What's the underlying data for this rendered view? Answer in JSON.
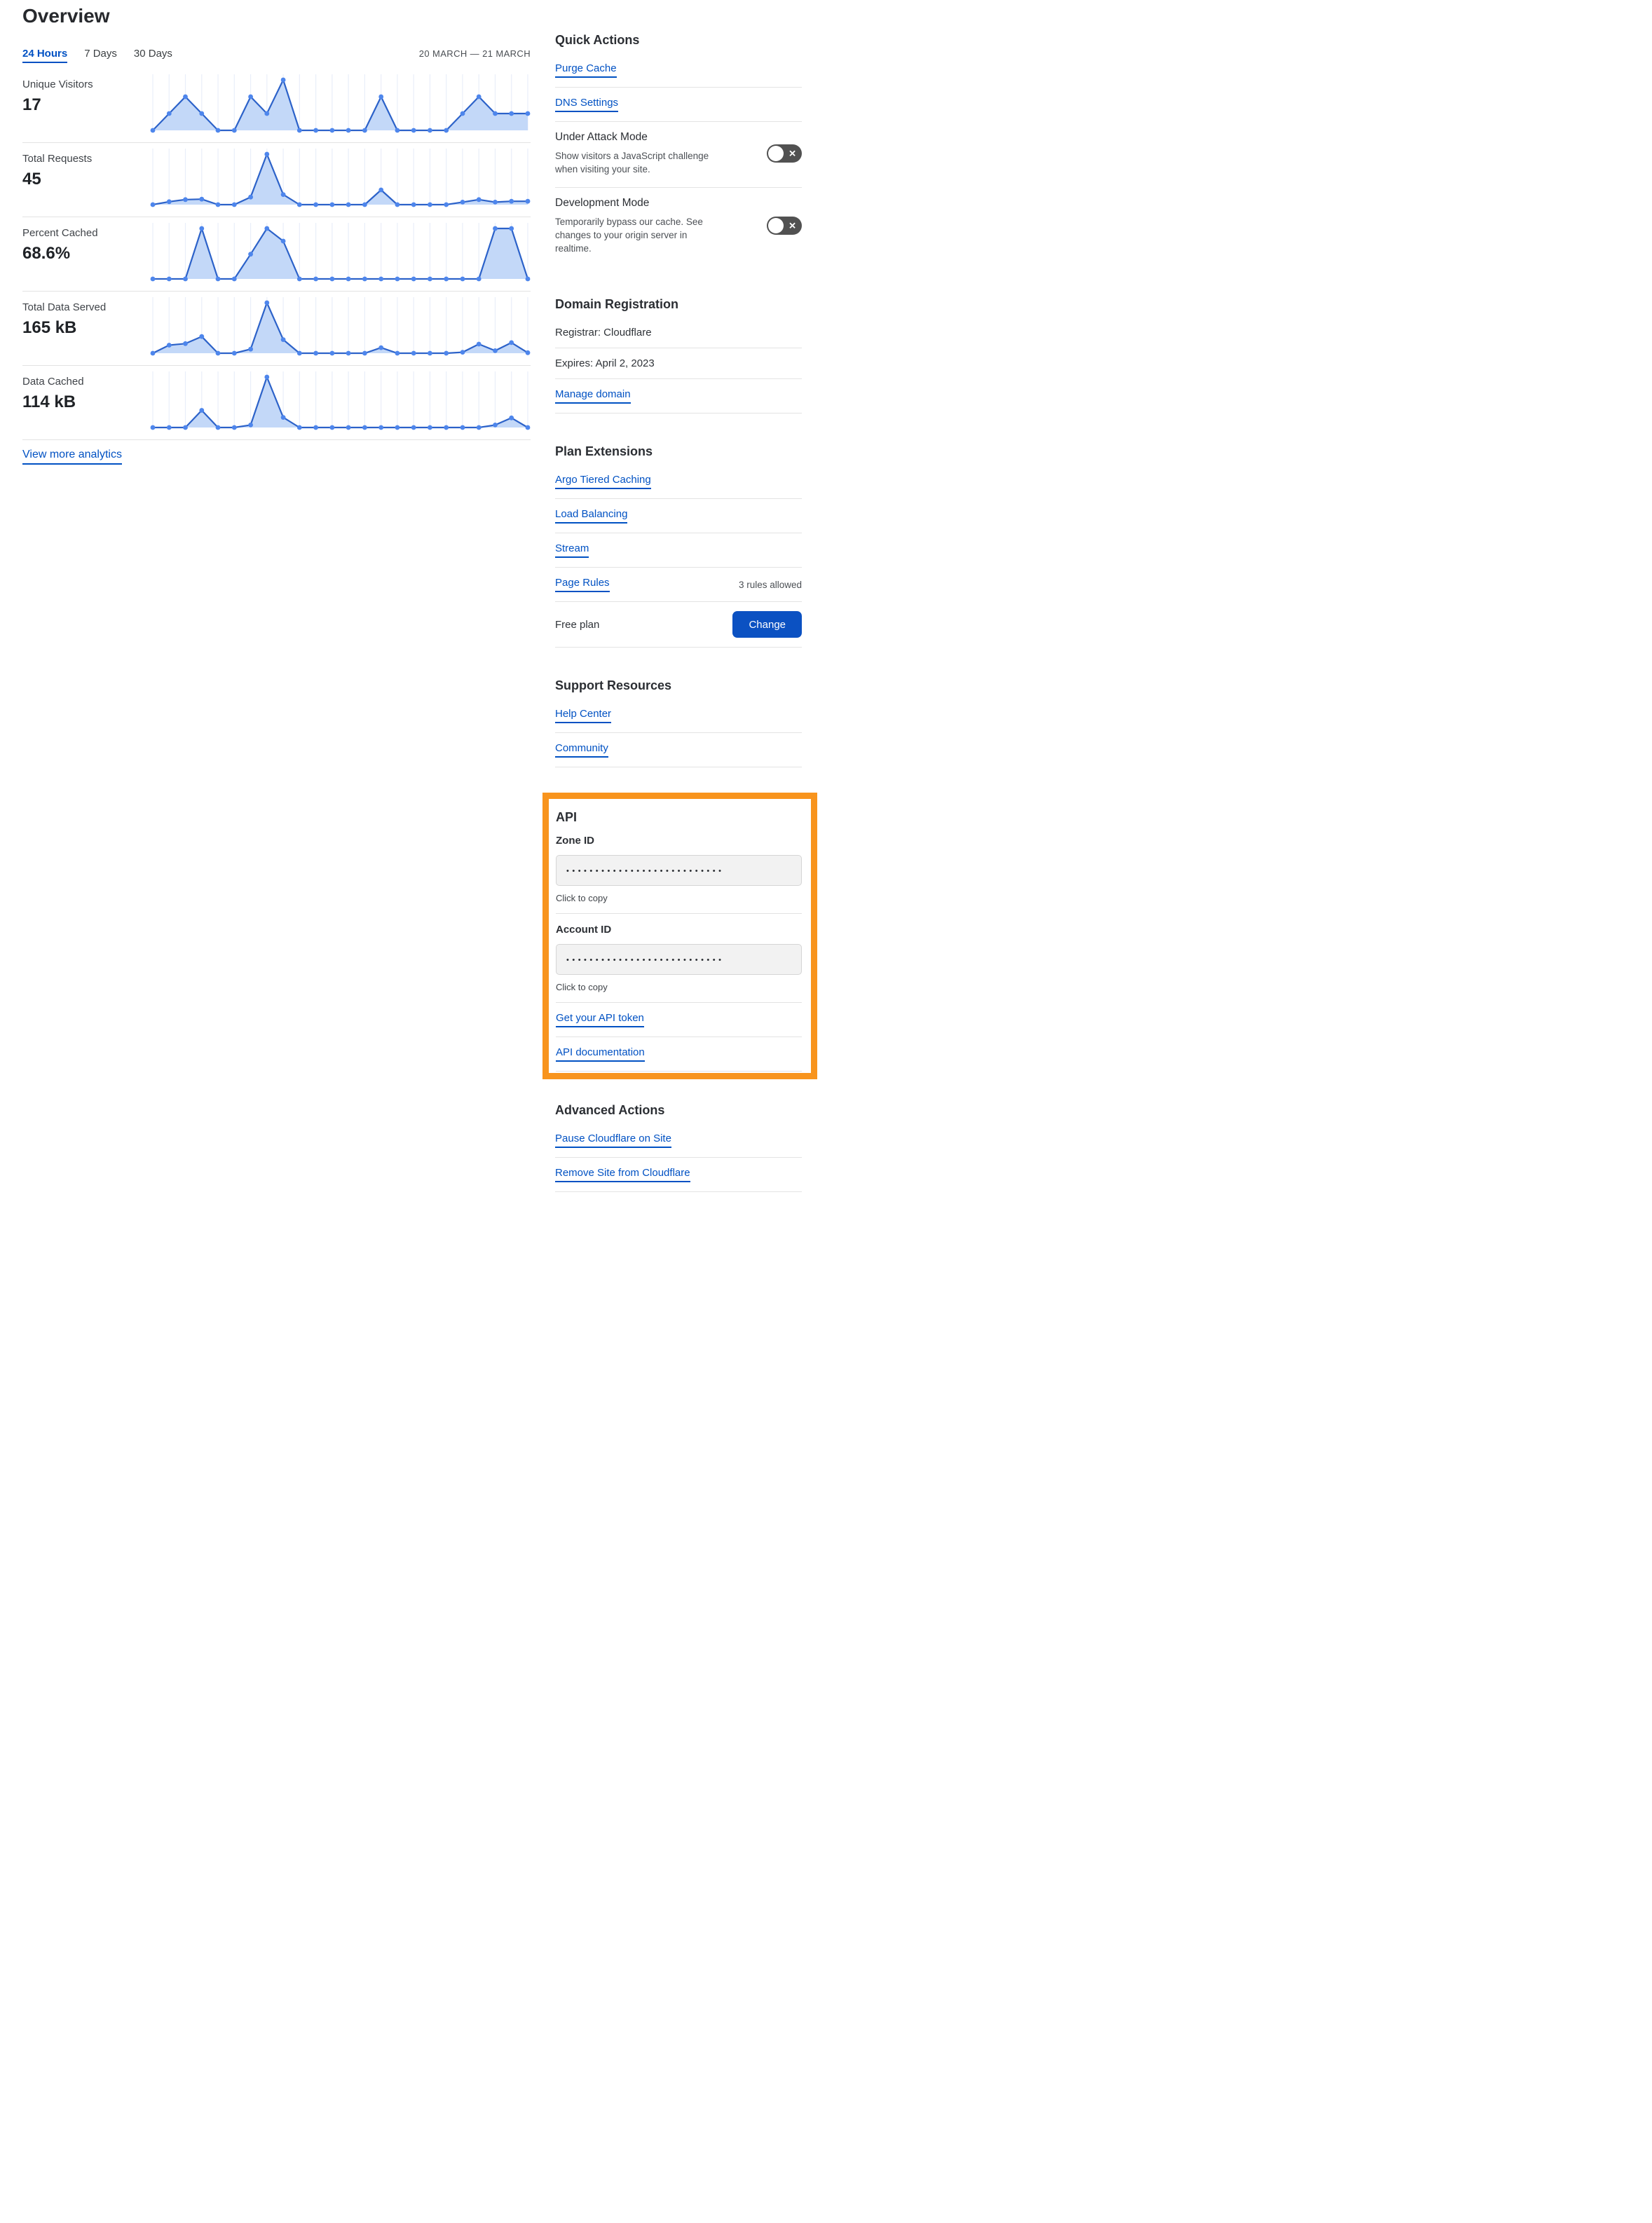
{
  "header": {
    "title": "Overview",
    "tabs": [
      {
        "label": "24 Hours",
        "active": true
      },
      {
        "label": "7 Days",
        "active": false
      },
      {
        "label": "30 Days",
        "active": false
      }
    ],
    "date_range": "20 MARCH — 21 MARCH"
  },
  "metrics": [
    {
      "label": "Unique Visitors",
      "value": "17"
    },
    {
      "label": "Total Requests",
      "value": "45"
    },
    {
      "label": "Percent Cached",
      "value": "68.6%"
    },
    {
      "label": "Total Data Served",
      "value": "165 kB"
    },
    {
      "label": "Data Cached",
      "value": "114 kB"
    }
  ],
  "view_more_label": "View more analytics",
  "chart_data": [
    {
      "type": "area",
      "title": "Unique Visitors",
      "displayed_total": "17",
      "x": "24 hourly buckets, 20 March — 21 March (no tick labels shown)",
      "values": [
        0,
        1,
        2,
        1,
        0,
        0,
        2,
        1,
        3,
        0,
        0,
        0,
        0,
        0,
        2,
        0,
        0,
        0,
        0,
        1,
        2,
        1,
        1,
        1
      ],
      "ylim": [
        0,
        3
      ],
      "grid": "vertical gridlines at each point",
      "legend": "none"
    },
    {
      "type": "area",
      "title": "Total Requests",
      "displayed_total": "45",
      "x": "24 hourly buckets, 20 March — 21 March (no tick labels shown)",
      "values": [
        0,
        0.7,
        1.2,
        1.3,
        0,
        0,
        1.8,
        12,
        2.4,
        0,
        0,
        0,
        0,
        0,
        3.5,
        0,
        0,
        0,
        0,
        0.6,
        1.2,
        0.6,
        0.8,
        0.8
      ],
      "ylim": [
        0,
        12
      ],
      "grid": "vertical gridlines at each point",
      "legend": "none"
    },
    {
      "type": "area",
      "title": "Percent Cached",
      "displayed_total": "68.6%",
      "x": "24 hourly buckets, 20 March — 21 March (no tick labels shown)",
      "values": [
        0,
        0,
        0,
        100,
        0,
        0,
        49,
        100,
        75,
        0,
        0,
        0,
        0,
        0,
        0,
        0,
        0,
        0,
        0,
        0,
        0,
        100,
        100,
        0
      ],
      "ylim": [
        0,
        100
      ],
      "grid": "vertical gridlines at each point",
      "legend": "none"
    },
    {
      "type": "area",
      "title": "Total Data Served",
      "displayed_total": "165 kB",
      "x": "24 hourly buckets, 20 March — 21 March (no tick labels shown)",
      "values": [
        0,
        16,
        19,
        33,
        0,
        0,
        8,
        100,
        27,
        0,
        0,
        0,
        0,
        0,
        11,
        0,
        0,
        0,
        0,
        2,
        18,
        5,
        21,
        1
      ],
      "ylim": [
        0,
        100
      ],
      "grid": "vertical gridlines at each point",
      "legend": "none"
    },
    {
      "type": "area",
      "title": "Data Cached",
      "displayed_total": "114 kB",
      "x": "24 hourly buckets, 20 March — 21 March (no tick labels shown)",
      "values": [
        0,
        0,
        0,
        34,
        0,
        0,
        5,
        100,
        20,
        0,
        0,
        0,
        0,
        0,
        0,
        0,
        0,
        0,
        0,
        0,
        0,
        5,
        19,
        0
      ],
      "ylim": [
        0,
        100
      ],
      "grid": "vertical gridlines at each point",
      "legend": "none"
    }
  ],
  "quick_actions": {
    "heading": "Quick Actions",
    "links": [
      "Purge Cache",
      "DNS Settings"
    ],
    "toggles": [
      {
        "title": "Under Attack Mode",
        "description": "Show visitors a JavaScript challenge when visiting your site.",
        "state": "off"
      },
      {
        "title": "Development Mode",
        "description": "Temporarily bypass our cache. See changes to your origin server in realtime.",
        "state": "off"
      }
    ]
  },
  "domain_registration": {
    "heading": "Domain Registration",
    "registrar": "Registrar: Cloudflare",
    "expires": "Expires: April 2, 2023",
    "manage_link": "Manage domain"
  },
  "plan_extensions": {
    "heading": "Plan Extensions",
    "links": [
      "Argo Tiered Caching",
      "Load Balancing",
      "Stream"
    ],
    "page_rules": {
      "label": "Page Rules",
      "note": "3 rules allowed"
    },
    "plan": {
      "label": "Free plan",
      "button_label": "Change"
    }
  },
  "support_resources": {
    "heading": "Support Resources",
    "links": [
      "Help Center",
      "Community"
    ]
  },
  "api": {
    "heading": "API",
    "zone_id": {
      "label": "Zone ID",
      "masked_value": "•••••••••••••••••••••••••••",
      "hint": "Click to copy"
    },
    "account_id": {
      "label": "Account ID",
      "masked_value": "•••••••••••••••••••••••••••",
      "hint": "Click to copy"
    },
    "links": [
      "Get your API token",
      "API documentation"
    ]
  },
  "advanced_actions": {
    "heading": "Advanced Actions",
    "links": [
      "Pause Cloudflare on Site",
      "Remove Site from Cloudflare"
    ]
  },
  "colors": {
    "link_blue": "#0051c3",
    "button_blue": "#0b51c2",
    "chart_line": "#2c62c9",
    "chart_dot": "#4e86ec",
    "chart_fill": "#c3d8f8",
    "chart_grid": "#e9eef9",
    "toggle_bg": "#515151",
    "highlight_orange": "#F8941D",
    "divider": "#e3e3e3"
  }
}
